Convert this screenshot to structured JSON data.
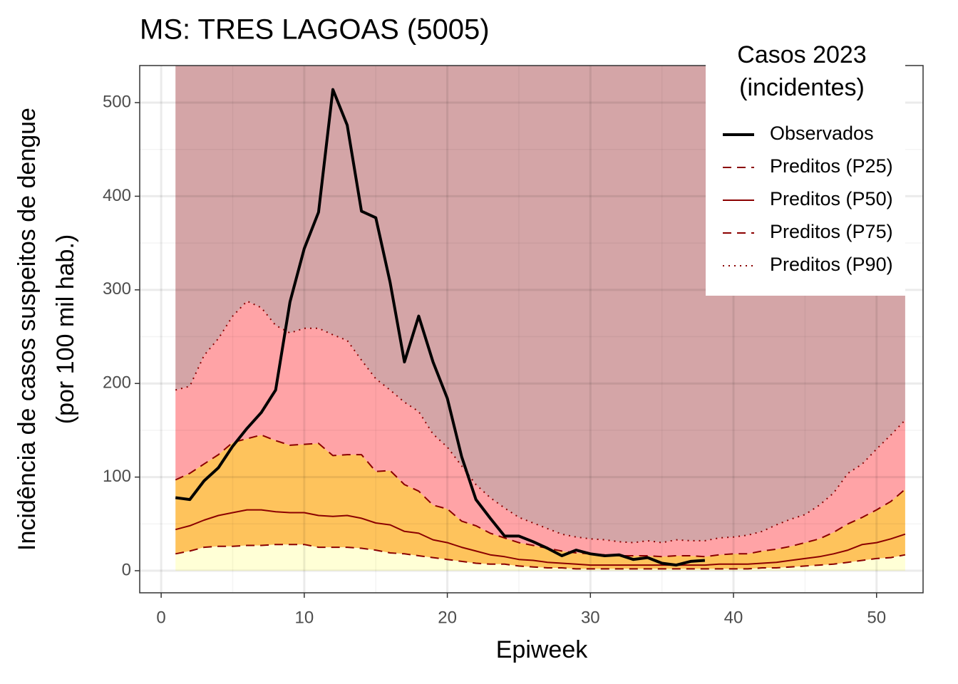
{
  "chart_data": {
    "type": "line",
    "title": "MS: TRES LAGOAS (5005)",
    "xlabel": "Epiweek",
    "ylabel": [
      "Incidência de casos suspeitos de dengue",
      "(por 100 mil hab.)"
    ],
    "legend_title": [
      "Casos 2023",
      "(incidentes)"
    ],
    "legend": "top-right",
    "grid": true,
    "xlim": [
      -1.5,
      53.25
    ],
    "ylim": [
      -23.6,
      539.6
    ],
    "xticks": [
      0,
      10,
      20,
      30,
      40,
      50
    ],
    "yticks": [
      0,
      100,
      200,
      300,
      400,
      500
    ],
    "band_colors": [
      "#ffffd6",
      "#fec35c",
      "#ffa3a6",
      "#d4a5a7"
    ],
    "x": [
      1,
      2,
      3,
      4,
      5,
      6,
      7,
      8,
      9,
      10,
      11,
      12,
      13,
      14,
      15,
      16,
      17,
      18,
      19,
      20,
      21,
      22,
      23,
      24,
      25,
      26,
      27,
      28,
      29,
      30,
      31,
      32,
      33,
      34,
      35,
      36,
      37,
      38,
      39,
      40,
      41,
      42,
      43,
      44,
      45,
      46,
      47,
      48,
      49,
      50,
      51,
      52
    ],
    "series": [
      {
        "name": "Observados",
        "color": "#000000",
        "dash": "solid",
        "width": 4,
        "values": [
          78,
          76,
          96,
          110,
          133,
          152,
          169,
          193,
          287,
          344,
          383,
          514,
          476,
          384,
          377,
          308,
          223,
          272,
          223,
          184,
          122,
          76,
          56,
          37,
          37,
          31,
          24,
          16,
          22,
          18,
          16,
          17,
          12,
          14,
          8,
          6,
          10,
          11,
          null,
          null,
          null,
          null,
          null,
          null,
          null,
          null,
          null,
          null,
          null,
          null,
          null,
          null
        ]
      },
      {
        "name": "Preditos (P25)",
        "color": "#8b0000",
        "dash": "dashed",
        "width": 2,
        "values": [
          18,
          21,
          25,
          26,
          26,
          27,
          27,
          28,
          28,
          28,
          25,
          25,
          25,
          24,
          22,
          19,
          18,
          16,
          14,
          12,
          10,
          8,
          7,
          7,
          5,
          4,
          3,
          3,
          2,
          2,
          2,
          2,
          2,
          2,
          2,
          2,
          2,
          2,
          2,
          2,
          2,
          3,
          3,
          4,
          5,
          6,
          7,
          9,
          11,
          13,
          14,
          17
        ]
      },
      {
        "name": "Preditos (P50)",
        "color": "#8b0000",
        "dash": "solid",
        "width": 2,
        "values": [
          44,
          48,
          54,
          59,
          62,
          65,
          65,
          63,
          62,
          62,
          59,
          58,
          59,
          56,
          51,
          49,
          42,
          40,
          33,
          30,
          25,
          21,
          17,
          15,
          12,
          11,
          9,
          8,
          7,
          6,
          6,
          6,
          6,
          6,
          6,
          6,
          6,
          6,
          7,
          7,
          7,
          8,
          9,
          11,
          13,
          15,
          18,
          22,
          28,
          30,
          34,
          39
        ]
      },
      {
        "name": "Preditos (P75)",
        "color": "#8b0000",
        "dash": "dashed",
        "width": 2,
        "values": [
          97,
          104,
          114,
          124,
          137,
          141,
          145,
          139,
          134,
          135,
          136,
          123,
          124,
          124,
          106,
          107,
          92,
          85,
          70,
          66,
          53,
          48,
          40,
          35,
          30,
          27,
          24,
          21,
          19,
          18,
          17,
          16,
          16,
          16,
          15,
          16,
          16,
          15,
          17,
          18,
          18,
          21,
          23,
          26,
          30,
          34,
          41,
          50,
          57,
          65,
          74,
          87
        ]
      },
      {
        "name": "Preditos (P90)",
        "color": "#8b0000",
        "dash": "dotted",
        "width": 2,
        "values": [
          193,
          197,
          230,
          248,
          272,
          288,
          281,
          262,
          254,
          259,
          259,
          252,
          246,
          225,
          205,
          193,
          180,
          170,
          146,
          132,
          112,
          92,
          78,
          67,
          57,
          51,
          45,
          39,
          36,
          34,
          33,
          31,
          30,
          32,
          30,
          33,
          32,
          32,
          35,
          36,
          38,
          42,
          49,
          55,
          60,
          70,
          83,
          104,
          114,
          130,
          145,
          161
        ]
      }
    ]
  }
}
